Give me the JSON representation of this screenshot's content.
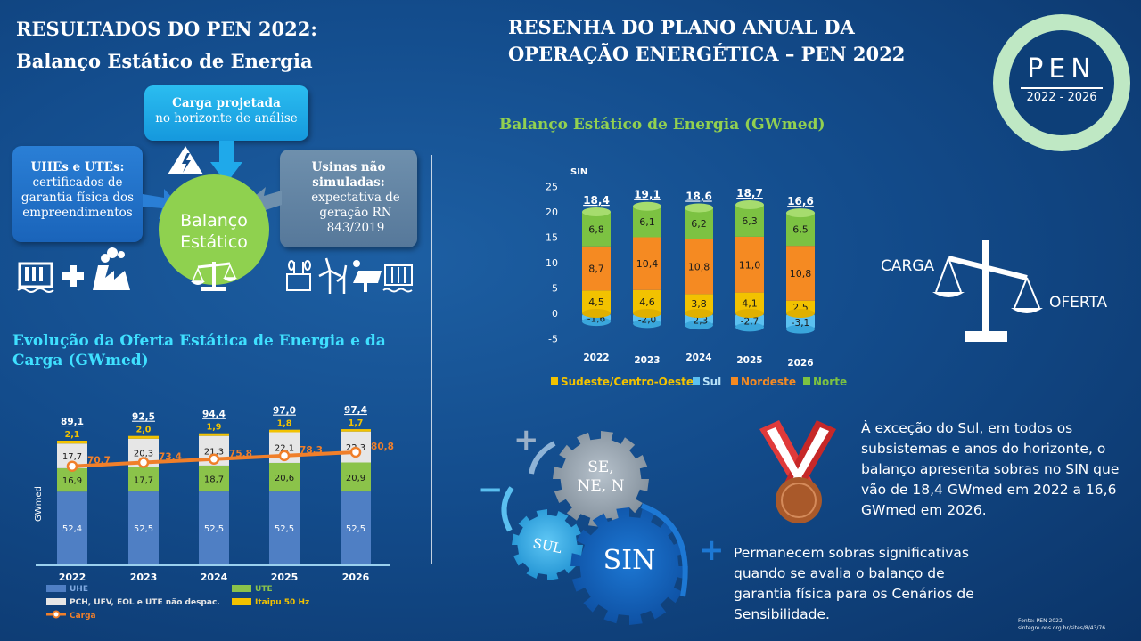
{
  "left": {
    "title_line1": "RESULTADOS DO PEN 2022:",
    "title_line2": "Balanço Estático de Energia",
    "box_carga": {
      "title": "Carga projetada",
      "text": "no horizonte de análise"
    },
    "box_uhes": {
      "title": "UHEs e UTEs:",
      "text": "certificados de garantia física dos empreendimentos"
    },
    "box_usinas": {
      "title": "Usinas não simuladas:",
      "text": "expectativa de geração RN 843/2019"
    },
    "center_label_1": "Balanço",
    "center_label_2": "Estático",
    "chart_title": "Evolução da Oferta Estática de Energia e da Carga (GWmed)"
  },
  "header": {
    "title_line1": "RESENHA DO PLANO ANUAL DA",
    "title_line2": "OPERAÇÃO ENERGÉTICA – PEN 2022"
  },
  "logo": {
    "text": "PEN",
    "years": "2022 - 2026"
  },
  "right_chart_title": "Balanço Estático de Energia (GWmed)",
  "scale": {
    "carga": "CARGA",
    "oferta": "OFERTA"
  },
  "gears": {
    "sen": "SE,",
    "nen": "NE, N",
    "sul": "SUL",
    "sin": "SIN",
    "plus": "+",
    "minus": "−"
  },
  "texts": {
    "p1": "À exceção do Sul, em todos os subsistemas e anos do horizonte, o balanço apresenta sobras no SIN que vão de 18,4 GWmed em 2022 a 16,6 GWmed em 2026.",
    "p2": "Permanecem sobras significativas quando se avalia o balanço de garantia física para os Cenários de Sensibilidade.",
    "source1": "Fonte: PEN 2022",
    "source2": "sintegre.ons.org.br/sites/8/43/76"
  },
  "colors": {
    "uhe": "#4f7fc4",
    "ute": "#8bc34a",
    "pch": "#e6e6e6",
    "itaipu": "#f2c200",
    "carga": "#f07f2a",
    "sudeste": "#f2c200",
    "sul": "#5bc0f0",
    "nordeste": "#f58a22",
    "norte": "#7cc242"
  },
  "chart_data": [
    {
      "type": "bar",
      "title": "Evolução da Oferta Estática de Energia e da Carga (GWmed)",
      "ylabel": "GWmed",
      "categories": [
        "2022",
        "2023",
        "2024",
        "2025",
        "2026"
      ],
      "series": [
        {
          "name": "UHE",
          "values": [
            52.4,
            52.5,
            52.5,
            52.5,
            52.5
          ],
          "labels": [
            "52,4",
            "52,5",
            "52,5",
            "52,5",
            "52,5"
          ]
        },
        {
          "name": "UTE",
          "values": [
            16.9,
            17.7,
            18.7,
            20.6,
            20.9
          ],
          "labels": [
            "16,9",
            "17,7",
            "18,7",
            "20,6",
            "20,9"
          ]
        },
        {
          "name": "PCH, UFV, EOL e UTE não despac.",
          "values": [
            17.7,
            20.3,
            21.3,
            22.1,
            22.3
          ],
          "labels": [
            "17,7",
            "20,3",
            "21,3",
            "22,1",
            "22,3"
          ]
        },
        {
          "name": "Itaipu 50 Hz",
          "values": [
            2.1,
            2.0,
            1.9,
            1.8,
            1.7
          ],
          "labels": [
            "2,1",
            "2,0",
            "1,9",
            "1,8",
            "1,7"
          ]
        },
        {
          "name": "Carga",
          "type": "line",
          "values": [
            70.7,
            73.4,
            75.8,
            78.3,
            80.8
          ],
          "labels": [
            "70,7",
            "73,4",
            "75,8",
            "78,3",
            "80,8"
          ]
        }
      ],
      "totals": [
        "89,1",
        "92,5",
        "94,4",
        "97,0",
        "97,4"
      ],
      "ylim": [
        0,
        100
      ]
    },
    {
      "type": "bar",
      "title": "Balanço Estático de Energia (GWmed)",
      "ylabel": "SIN",
      "categories": [
        "2022",
        "2023",
        "2024",
        "2025",
        "2026"
      ],
      "yticks": [
        "25",
        "20",
        "15",
        "10",
        "5",
        "0",
        "-5"
      ],
      "ylim": [
        -5,
        25
      ],
      "series": [
        {
          "name": "Sudeste/Centro-Oeste",
          "values": [
            4.5,
            4.6,
            3.8,
            4.1,
            2.5
          ],
          "labels": [
            "4,5",
            "4,6",
            "3,8",
            "4,1",
            "2,5"
          ]
        },
        {
          "name": "Sul",
          "values": [
            -1.6,
            -2.0,
            -2.3,
            -2.7,
            -3.1
          ],
          "labels": [
            "-1,6",
            "-2,0",
            "-2,3",
            "-2,7",
            "-3,1"
          ]
        },
        {
          "name": "Nordeste",
          "values": [
            8.7,
            10.4,
            10.8,
            11.0,
            10.8
          ],
          "labels": [
            "8,7",
            "10,4",
            "10,8",
            "11,0",
            "10,8"
          ]
        },
        {
          "name": "Norte",
          "values": [
            6.8,
            6.1,
            6.2,
            6.3,
            6.5
          ],
          "labels": [
            "6,8",
            "6,1",
            "6,2",
            "6,3",
            "6,5"
          ]
        }
      ],
      "totals": [
        "18,4",
        "19,1",
        "18,6",
        "18,7",
        "16,6"
      ],
      "legend": "bottom"
    }
  ]
}
